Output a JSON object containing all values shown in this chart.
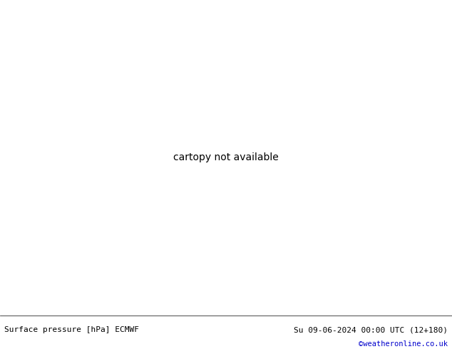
{
  "title_left": "Surface pressure [hPa] ECMWF",
  "title_right": "Su 09-06-2024 00:00 UTC (12+180)",
  "credit": "©weatheronline.co.uk",
  "credit_color": "#0000cc",
  "bg_color": "#ffffff",
  "land_green": "#c8e8a8",
  "land_gray": "#c0c0c0",
  "sea_color": "#e8e8e8",
  "footer_line_color": "#000000",
  "figsize": [
    6.34,
    4.9
  ],
  "dpi": 100,
  "label_fontsize": 8.0,
  "credit_fontsize": 7.5,
  "isobar_fontsize": 6.5,
  "map_extent": [
    -30,
    45,
    25,
    72
  ]
}
